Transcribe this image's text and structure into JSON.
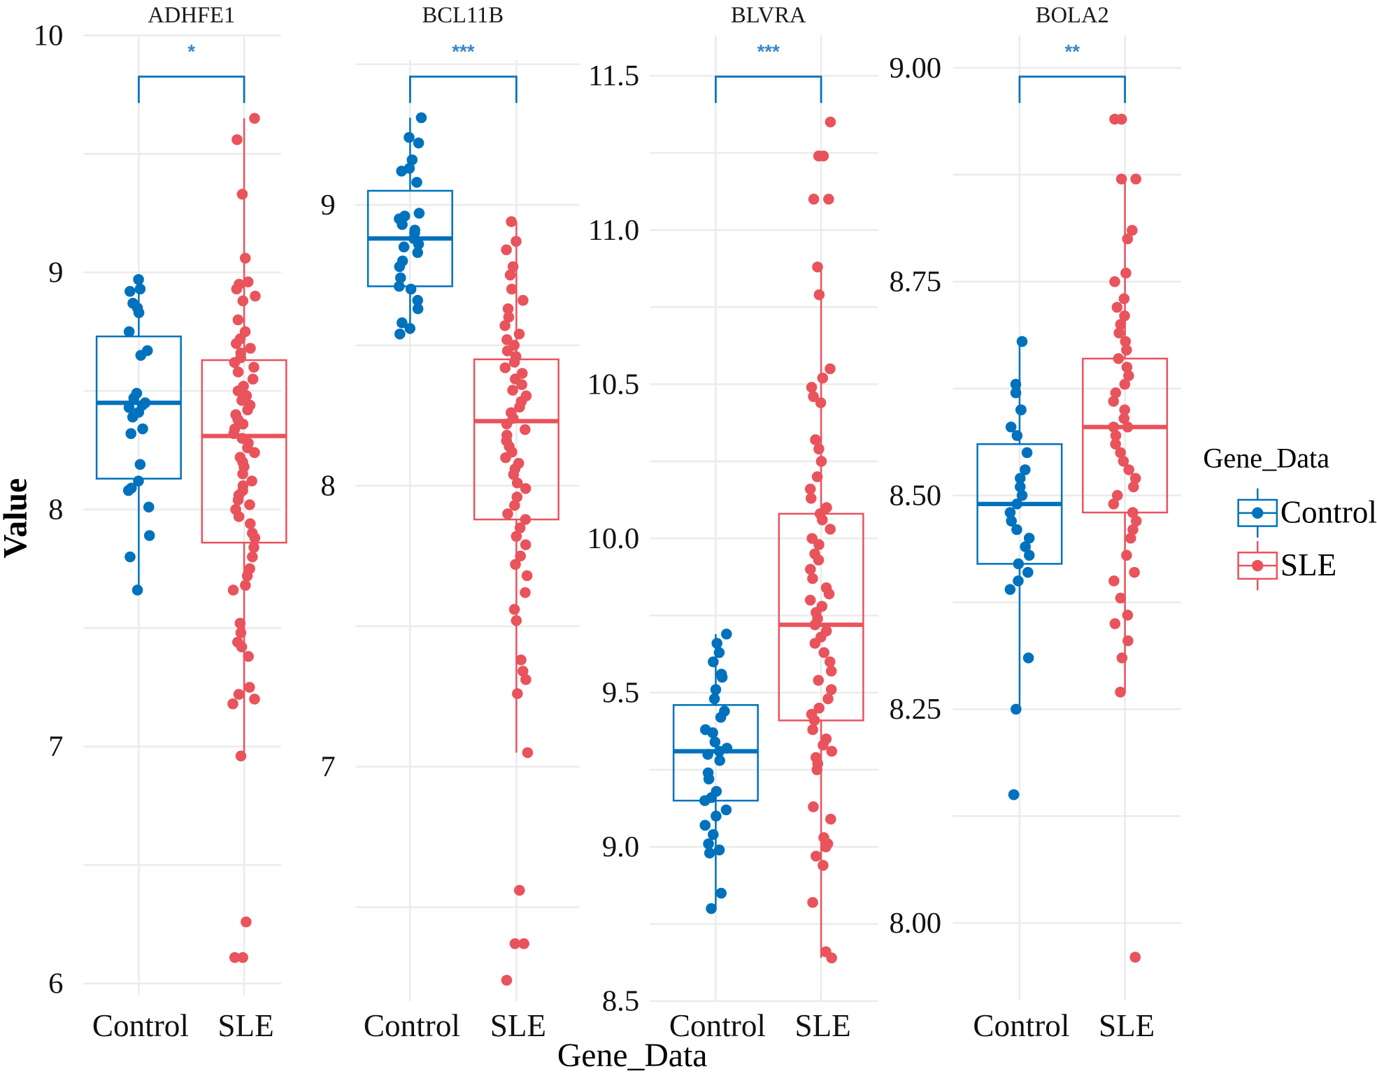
{
  "chart_data": {
    "type": "box",
    "xlabel": "Gene_Data",
    "ylabel": "Value",
    "legend": {
      "title": "Gene_Data",
      "position": "right",
      "entries": [
        {
          "label": "Control",
          "color": "#0072BD"
        },
        {
          "label": "SLE",
          "color": "#E9535C"
        }
      ]
    },
    "categories": [
      "Control",
      "SLE"
    ],
    "grid": true,
    "panels": [
      {
        "title": "ADHFE1",
        "significance": "*",
        "ylim": [
          5.95,
          10.1
        ],
        "yticks": [
          6,
          7,
          8,
          9,
          10
        ],
        "ytick_labels": [
          "6",
          "7",
          "8",
          "9",
          "10"
        ],
        "minor_grid": [
          6.5,
          7.5,
          8.5,
          9.5
        ],
        "groups": [
          {
            "name": "Control",
            "q1": 8.13,
            "median": 8.45,
            "q3": 8.73,
            "whisker_low": 7.66,
            "whisker_high": 8.97,
            "points": [
              8.97,
              8.93,
              8.92,
              8.87,
              8.85,
              8.83,
              8.75,
              8.67,
              8.65,
              8.49,
              8.47,
              8.45,
              8.44,
              8.43,
              8.41,
              8.39,
              8.34,
              8.32,
              8.19,
              8.12,
              8.09,
              8.08,
              8.01,
              7.89,
              7.8,
              7.66
            ]
          },
          {
            "name": "SLE",
            "q1": 7.86,
            "median": 8.31,
            "q3": 8.63,
            "whisker_low": 6.96,
            "whisker_high": 9.65,
            "points": [
              9.65,
              9.56,
              9.33,
              9.06,
              8.96,
              8.95,
              8.93,
              8.9,
              8.88,
              8.8,
              8.75,
              8.72,
              8.7,
              8.68,
              8.66,
              8.64,
              8.62,
              8.6,
              8.58,
              8.55,
              8.52,
              8.5,
              8.48,
              8.46,
              8.44,
              8.42,
              8.4,
              8.38,
              8.36,
              8.34,
              8.32,
              8.3,
              8.28,
              8.26,
              8.24,
              8.22,
              8.2,
              8.18,
              8.15,
              8.12,
              8.1,
              8.08,
              8.06,
              8.04,
              8.02,
              8.0,
              7.97,
              7.94,
              7.9,
              7.88,
              7.84,
              7.8,
              7.75,
              7.72,
              7.68,
              7.66,
              7.52,
              7.48,
              7.44,
              7.42,
              7.38,
              7.25,
              7.22,
              7.2,
              7.18,
              6.96,
              6.26,
              6.11,
              6.11
            ]
          }
        ]
      },
      {
        "title": "BCL11B",
        "significance": "***",
        "ylim": [
          6.1,
          9.5
        ],
        "yticks": [
          7,
          8,
          9
        ],
        "ytick_labels": [
          "7",
          "8",
          "9"
        ],
        "minor_grid": [
          6.5,
          7.5,
          8.5,
          9.5
        ],
        "groups": [
          {
            "name": "Control",
            "q1": 8.71,
            "median": 8.88,
            "q3": 9.05,
            "whisker_low": 8.54,
            "whisker_high": 9.31,
            "points": [
              9.31,
              9.24,
              9.22,
              9.16,
              9.13,
              9.12,
              9.08,
              8.97,
              8.96,
              8.95,
              8.93,
              8.91,
              8.9,
              8.88,
              8.86,
              8.85,
              8.83,
              8.8,
              8.78,
              8.74,
              8.71,
              8.7,
              8.66,
              8.63,
              8.58,
              8.56,
              8.54
            ]
          },
          {
            "name": "SLE",
            "q1": 7.88,
            "median": 8.23,
            "q3": 8.45,
            "whisker_low": 7.05,
            "whisker_high": 8.94,
            "points": [
              8.94,
              8.87,
              8.84,
              8.78,
              8.75,
              8.7,
              8.66,
              8.63,
              8.6,
              8.57,
              8.54,
              8.52,
              8.5,
              8.48,
              8.46,
              8.44,
              8.42,
              8.4,
              8.38,
              8.36,
              8.34,
              8.32,
              8.3,
              8.28,
              8.26,
              8.24,
              8.22,
              8.2,
              8.18,
              8.16,
              8.14,
              8.12,
              8.1,
              8.08,
              8.06,
              8.04,
              8.01,
              7.99,
              7.96,
              7.93,
              7.9,
              7.88,
              7.85,
              7.82,
              7.79,
              7.75,
              7.72,
              7.68,
              7.62,
              7.56,
              7.52,
              7.38,
              7.34,
              7.31,
              7.26,
              7.05,
              6.56,
              6.37,
              6.37,
              6.24
            ]
          }
        ]
      },
      {
        "title": "BLVRA",
        "significance": "***",
        "ylim": [
          8.5,
          11.65
        ],
        "yticks": [
          8.5,
          9.0,
          9.5,
          10.0,
          10.5,
          11.0,
          11.5
        ],
        "ytick_labels": [
          "8.5",
          "9.0",
          "9.5",
          "10.0",
          "10.5",
          "11.0",
          "11.5"
        ],
        "minor_grid": [
          8.75,
          9.25,
          9.75,
          10.25,
          10.75,
          11.25
        ],
        "groups": [
          {
            "name": "Control",
            "q1": 9.15,
            "median": 9.31,
            "q3": 9.46,
            "whisker_low": 8.8,
            "whisker_high": 9.69,
            "points": [
              9.69,
              9.66,
              9.63,
              9.6,
              9.56,
              9.55,
              9.51,
              9.48,
              9.44,
              9.42,
              9.38,
              9.37,
              9.34,
              9.32,
              9.31,
              9.3,
              9.28,
              9.24,
              9.22,
              9.18,
              9.16,
              9.15,
              9.12,
              9.1,
              9.07,
              9.04,
              9.01,
              8.99,
              8.98,
              8.85,
              8.8
            ]
          },
          {
            "name": "SLE",
            "q1": 9.41,
            "median": 9.72,
            "q3": 10.08,
            "whisker_low": 8.64,
            "whisker_high": 10.88,
            "points": [
              11.35,
              11.24,
              11.24,
              11.1,
              11.1,
              10.88,
              10.79,
              10.55,
              10.52,
              10.49,
              10.46,
              10.44,
              10.32,
              10.29,
              10.25,
              10.2,
              10.16,
              10.13,
              10.1,
              10.08,
              10.06,
              10.03,
              10.0,
              9.98,
              9.95,
              9.93,
              9.9,
              9.87,
              9.84,
              9.82,
              9.8,
              9.78,
              9.76,
              9.74,
              9.72,
              9.7,
              9.68,
              9.66,
              9.63,
              9.6,
              9.57,
              9.54,
              9.51,
              9.48,
              9.45,
              9.43,
              9.41,
              9.38,
              9.35,
              9.33,
              9.31,
              9.29,
              9.27,
              9.25,
              9.13,
              9.09,
              9.03,
              9.01,
              9.0,
              8.97,
              8.94,
              8.82,
              8.66,
              8.64
            ]
          }
        ]
      },
      {
        "title": "BOLA2",
        "significance": "**",
        "ylim": [
          7.91,
          9.04
        ],
        "yticks": [
          8.0,
          8.25,
          8.5,
          8.75,
          9.0
        ],
        "ytick_labels": [
          "8.00",
          "8.25",
          "8.50",
          "8.75",
          "9.00"
        ],
        "minor_grid": [
          8.125,
          8.375,
          8.625,
          8.875
        ],
        "groups": [
          {
            "name": "Control",
            "q1": 8.42,
            "median": 8.49,
            "q3": 8.56,
            "whisker_low": 8.25,
            "whisker_high": 8.68,
            "points": [
              8.68,
              8.63,
              8.62,
              8.6,
              8.6,
              8.58,
              8.57,
              8.55,
              8.53,
              8.52,
              8.51,
              8.5,
              8.49,
              8.48,
              8.47,
              8.46,
              8.45,
              8.44,
              8.43,
              8.42,
              8.41,
              8.4,
              8.39,
              8.31,
              8.25,
              8.15,
              8.15
            ]
          },
          {
            "name": "SLE",
            "q1": 8.48,
            "median": 8.58,
            "q3": 8.66,
            "whisker_low": 8.27,
            "whisker_high": 8.87,
            "points": [
              8.94,
              8.94,
              8.87,
              8.87,
              8.81,
              8.8,
              8.76,
              8.75,
              8.73,
              8.72,
              8.71,
              8.7,
              8.69,
              8.68,
              8.67,
              8.66,
              8.65,
              8.64,
              8.63,
              8.62,
              8.61,
              8.6,
              8.59,
              8.58,
              8.58,
              8.57,
              8.56,
              8.55,
              8.54,
              8.53,
              8.52,
              8.51,
              8.5,
              8.49,
              8.48,
              8.47,
              8.46,
              8.45,
              8.43,
              8.41,
              8.4,
              8.38,
              8.36,
              8.35,
              8.33,
              8.31,
              8.27,
              7.96
            ]
          }
        ]
      }
    ]
  }
}
